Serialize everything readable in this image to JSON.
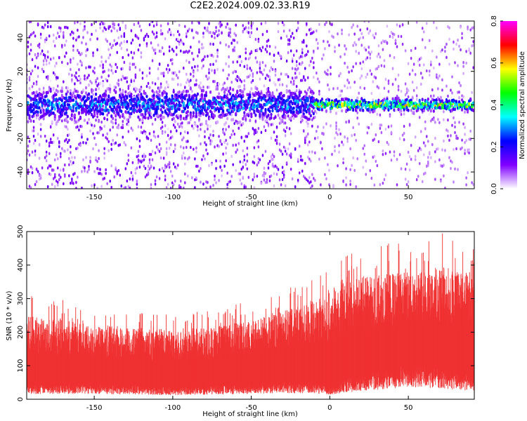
{
  "title": "C2E2.2024.009.02.33.R19",
  "chart_data": [
    {
      "type": "heatmap",
      "xlabel": "Height of straight line (km)",
      "ylabel": "Frequency (Hz)",
      "xlim": [
        -193,
        92
      ],
      "ylim": [
        -50,
        50
      ],
      "xticks": [
        -150,
        -100,
        -50,
        0,
        50
      ],
      "yticks": [
        -40,
        -20,
        0,
        20,
        40
      ],
      "colorbar": {
        "label": "Normalized spectral amplitude",
        "range": [
          0,
          0.8
        ],
        "ticks": [
          0,
          0.2,
          0.4,
          0.6,
          0.8
        ],
        "tick_labels": [
          "0.0",
          "0.2",
          "0.4",
          "0.6",
          "0.8"
        ],
        "colormap": [
          "#ffffff",
          "#8000ff",
          "#0000ff",
          "#00ffff",
          "#00ff00",
          "#ffff00",
          "#ff0000",
          "#ff00ff"
        ]
      },
      "features": [
        {
          "x_range": [
            -193,
            -10
          ],
          "center_freq": 0,
          "freq_halfwidth": 8,
          "peak_amplitude": 0.35
        },
        {
          "x_range": [
            -10,
            92
          ],
          "center_freq": 0,
          "freq_halfwidth": 3,
          "peak_amplitude": 0.65
        }
      ],
      "grid": false
    },
    {
      "type": "area",
      "xlabel": "Height of straight line (km)",
      "ylabel": "SNR (10 * v/v)",
      "xlim": [
        -193,
        92
      ],
      "ylim": [
        0,
        500
      ],
      "xticks": [
        -150,
        -100,
        -50,
        0,
        50
      ],
      "yticks": [
        0,
        100,
        200,
        300,
        400,
        500
      ],
      "color": "#f03232",
      "envelope": {
        "x": [
          -193,
          -170,
          -150,
          -120,
          -100,
          -75,
          -50,
          -25,
          -5,
          0,
          10,
          30,
          50,
          70,
          92
        ],
        "upper": [
          250,
          240,
          215,
          210,
          205,
          215,
          235,
          270,
          300,
          320,
          370,
          370,
          380,
          400,
          370
        ],
        "lower": [
          40,
          40,
          40,
          35,
          30,
          35,
          40,
          45,
          40,
          30,
          50,
          70,
          90,
          80,
          60
        ]
      },
      "grid": false
    }
  ]
}
